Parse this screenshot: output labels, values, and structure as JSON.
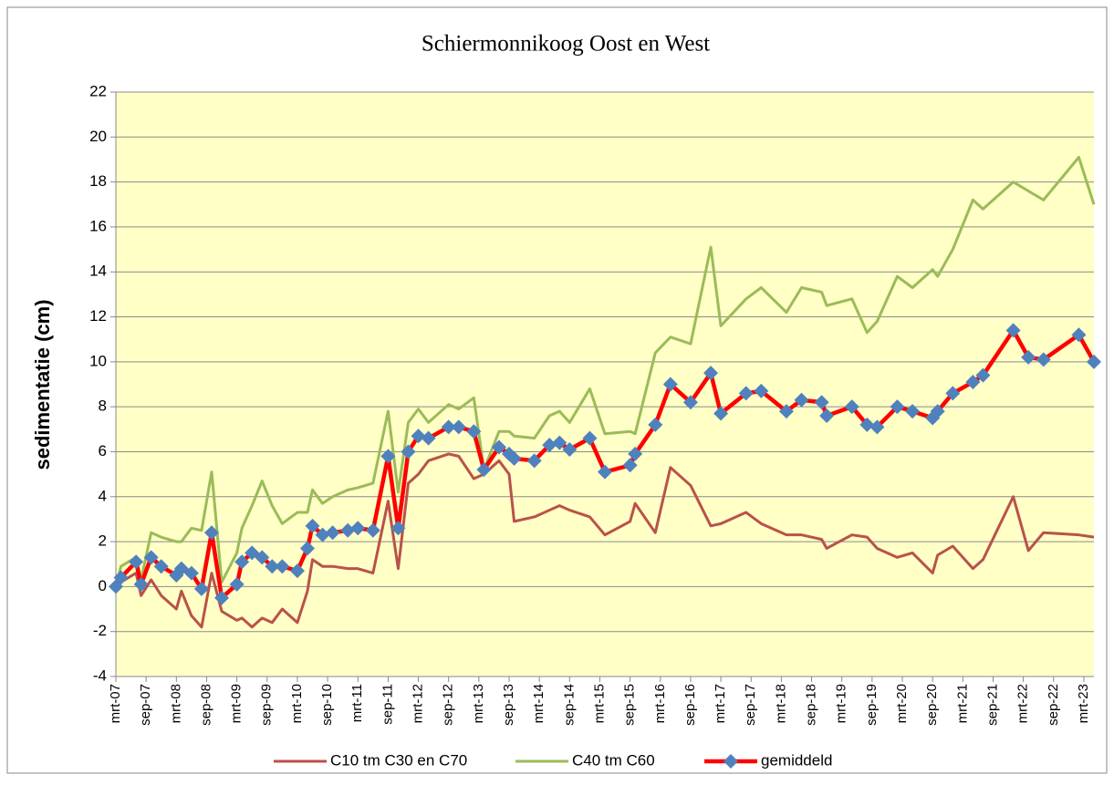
{
  "chart_data": {
    "type": "line",
    "title": "Schiermonnikoog Oost en West",
    "y_label": "sedimentatie (cm)",
    "x": [
      0,
      1,
      4,
      5,
      7,
      9,
      12,
      13,
      15,
      17,
      19,
      21,
      24,
      25,
      27,
      29,
      31,
      33,
      36,
      38,
      39,
      41,
      43,
      46,
      48,
      51,
      54,
      56,
      58,
      60,
      62,
      66,
      68,
      71,
      73,
      76,
      78,
      79,
      83,
      86,
      88,
      90,
      94,
      97,
      102,
      103,
      107,
      110,
      114,
      118,
      120,
      125,
      128,
      133,
      136,
      140,
      141,
      146,
      149,
      151,
      155,
      158,
      162,
      163,
      166,
      170,
      172,
      178,
      181,
      184,
      191,
      194
    ],
    "series": [
      {
        "name": "C10 tm C30 en C70",
        "color": "#b9524a",
        "marker": false,
        "values": [
          0,
          0.2,
          0.6,
          -0.4,
          0.3,
          -0.4,
          -1.0,
          -0.2,
          -1.3,
          -1.8,
          0.6,
          -1.1,
          -1.5,
          -1.4,
          -1.8,
          -1.4,
          -1.6,
          -1.0,
          -1.6,
          -0.2,
          1.2,
          0.9,
          0.9,
          0.8,
          0.8,
          0.6,
          3.8,
          0.8,
          4.6,
          5.0,
          5.6,
          5.9,
          5.8,
          4.8,
          5.0,
          5.6,
          5.0,
          2.9,
          3.1,
          3.4,
          3.6,
          3.4,
          3.1,
          2.3,
          2.9,
          3.7,
          2.4,
          5.3,
          4.5,
          2.7,
          2.8,
          3.3,
          2.8,
          2.3,
          2.3,
          2.1,
          1.7,
          2.3,
          2.2,
          1.7,
          1.3,
          1.5,
          0.6,
          1.4,
          1.8,
          0.8,
          1.2,
          4.0,
          1.6,
          2.4,
          2.3,
          2.2
        ]
      },
      {
        "name": "C40 tm C60",
        "color": "#9bbb59",
        "marker": false,
        "values": [
          0,
          0.9,
          1.3,
          0.3,
          2.4,
          2.2,
          2.0,
          2.0,
          2.6,
          2.5,
          5.1,
          0.2,
          1.5,
          2.6,
          3.6,
          4.7,
          3.6,
          2.8,
          3.3,
          3.3,
          4.3,
          3.7,
          4.0,
          4.3,
          4.4,
          4.6,
          7.8,
          4.2,
          7.3,
          7.9,
          7.3,
          8.1,
          7.9,
          8.4,
          5.2,
          6.9,
          6.9,
          6.7,
          6.6,
          7.6,
          7.8,
          7.3,
          8.8,
          6.8,
          6.9,
          6.8,
          10.4,
          11.1,
          10.8,
          15.1,
          11.6,
          12.8,
          13.3,
          12.2,
          13.3,
          13.1,
          12.5,
          12.8,
          11.3,
          11.8,
          13.8,
          13.3,
          14.1,
          13.8,
          15.0,
          17.2,
          16.8,
          18.0,
          17.6,
          17.2,
          19.1,
          17.0
        ]
      },
      {
        "name": "gemiddeld",
        "color": "#ff0000",
        "marker": true,
        "marker_color": "#4f81bd",
        "values": [
          0,
          0.4,
          1.1,
          0.1,
          1.3,
          0.9,
          0.5,
          0.8,
          0.6,
          -0.1,
          2.4,
          -0.5,
          0.1,
          1.1,
          1.5,
          1.3,
          0.9,
          0.9,
          0.7,
          1.7,
          2.7,
          2.3,
          2.4,
          2.5,
          2.6,
          2.5,
          5.8,
          2.6,
          6.0,
          6.7,
          6.6,
          7.1,
          7.1,
          6.9,
          5.2,
          6.2,
          5.9,
          5.7,
          5.6,
          6.3,
          6.4,
          6.1,
          6.6,
          5.1,
          5.4,
          5.9,
          7.2,
          9.0,
          8.2,
          9.5,
          7.7,
          8.6,
          8.7,
          7.8,
          8.3,
          8.2,
          7.6,
          8.0,
          7.2,
          7.1,
          8.0,
          7.8,
          7.5,
          7.8,
          8.6,
          9.1,
          9.4,
          11.4,
          10.2,
          10.1,
          11.2,
          10.0
        ]
      }
    ],
    "xlim": [
      0,
      194
    ],
    "xticks": [
      {
        "value": 0,
        "label": "mrt-07"
      },
      {
        "value": 6,
        "label": "sep-07"
      },
      {
        "value": 12,
        "label": "mrt-08"
      },
      {
        "value": 18,
        "label": "sep-08"
      },
      {
        "value": 24,
        "label": "mrt-09"
      },
      {
        "value": 30,
        "label": "sep-09"
      },
      {
        "value": 36,
        "label": "mrt-10"
      },
      {
        "value": 42,
        "label": "sep-10"
      },
      {
        "value": 48,
        "label": "mrt-11"
      },
      {
        "value": 54,
        "label": "sep-11"
      },
      {
        "value": 60,
        "label": "mrt-12"
      },
      {
        "value": 66,
        "label": "sep-12"
      },
      {
        "value": 72,
        "label": "mrt-13"
      },
      {
        "value": 78,
        "label": "sep-13"
      },
      {
        "value": 84,
        "label": "mrt-14"
      },
      {
        "value": 90,
        "label": "sep-14"
      },
      {
        "value": 96,
        "label": "mrt-15"
      },
      {
        "value": 102,
        "label": "sep-15"
      },
      {
        "value": 108,
        "label": "mrt-16"
      },
      {
        "value": 114,
        "label": "sep-16"
      },
      {
        "value": 120,
        "label": "mrt-17"
      },
      {
        "value": 126,
        "label": "sep-17"
      },
      {
        "value": 132,
        "label": "mrt-18"
      },
      {
        "value": 138,
        "label": "sep-18"
      },
      {
        "value": 144,
        "label": "mrt-19"
      },
      {
        "value": 150,
        "label": "sep-19"
      },
      {
        "value": 156,
        "label": "mrt-20"
      },
      {
        "value": 162,
        "label": "sep-20"
      },
      {
        "value": 168,
        "label": "mrt-21"
      },
      {
        "value": 174,
        "label": "sep-21"
      },
      {
        "value": 180,
        "label": "mrt-22"
      },
      {
        "value": 186,
        "label": "sep-22"
      },
      {
        "value": 192,
        "label": "mrt-23"
      }
    ],
    "ylim": [
      -4,
      22
    ],
    "yticks": [
      -4,
      -2,
      0,
      2,
      4,
      6,
      8,
      10,
      12,
      14,
      16,
      18,
      20,
      22
    ],
    "grid": true,
    "legend": "bottom",
    "plot_background": "#ffffc6"
  }
}
